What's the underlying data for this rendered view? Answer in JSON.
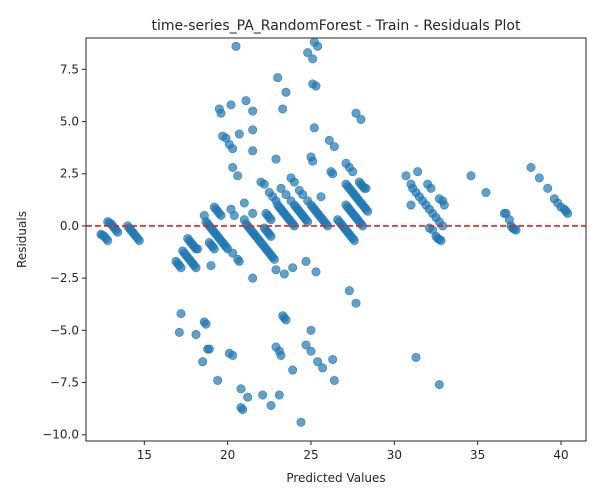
{
  "chart_data": {
    "type": "scatter",
    "title": "time-series_PA_RandomForest - Train - Residuals Plot",
    "xlabel": "Predicted Values",
    "ylabel": "Residuals",
    "xlim": [
      11.5,
      41.5
    ],
    "ylim": [
      -10.3,
      9.0
    ],
    "xticks": [
      15,
      20,
      25,
      30,
      35,
      40
    ],
    "yticks": [
      -10.0,
      -7.5,
      -5.0,
      -2.5,
      0.0,
      2.5,
      5.0,
      7.5
    ],
    "ytick_labels": [
      "−10.0",
      "−7.5",
      "−5.0",
      "−2.5",
      "0.0",
      "2.5",
      "5.0",
      "7.5"
    ],
    "grid": false,
    "reference_line": {
      "y": 0,
      "color": "#d62728",
      "style": "dashed"
    },
    "colors": {
      "points": "#1f77b4",
      "point_opacity": 0.7
    },
    "series": [
      {
        "points": [
          [
            12.4,
            -0.4
          ],
          [
            12.5,
            -0.45
          ],
          [
            12.6,
            -0.5
          ],
          [
            12.7,
            -0.6
          ],
          [
            12.8,
            -0.7
          ],
          [
            12.8,
            0.2
          ],
          [
            12.9,
            0.15
          ],
          [
            13.0,
            0.1
          ],
          [
            13.1,
            0.0
          ],
          [
            13.2,
            -0.1
          ],
          [
            13.3,
            -0.2
          ],
          [
            13.4,
            -0.3
          ],
          [
            14.0,
            0.0
          ],
          [
            14.1,
            -0.1
          ],
          [
            14.2,
            -0.2
          ],
          [
            14.3,
            -0.3
          ],
          [
            14.4,
            -0.4
          ],
          [
            14.5,
            -0.5
          ],
          [
            14.6,
            -0.6
          ],
          [
            14.7,
            -0.7
          ],
          [
            16.9,
            -1.7
          ],
          [
            17.0,
            -1.8
          ],
          [
            17.1,
            -1.9
          ],
          [
            17.2,
            -2.0
          ],
          [
            17.3,
            -1.2
          ],
          [
            17.4,
            -1.3
          ],
          [
            17.5,
            -1.4
          ],
          [
            17.6,
            -1.5
          ],
          [
            17.7,
            -1.6
          ],
          [
            17.8,
            -1.7
          ],
          [
            17.9,
            -1.8
          ],
          [
            18.0,
            -1.9
          ],
          [
            18.1,
            -2.0
          ],
          [
            17.6,
            -0.6
          ],
          [
            17.7,
            -0.7
          ],
          [
            17.8,
            -0.8
          ],
          [
            17.9,
            -0.9
          ],
          [
            18.0,
            -1.0
          ],
          [
            18.1,
            -1.1
          ],
          [
            18.2,
            -1.1
          ],
          [
            18.6,
            0.5
          ],
          [
            18.7,
            0.2
          ],
          [
            18.8,
            0.1
          ],
          [
            18.9,
            0.0
          ],
          [
            19.0,
            -0.1
          ],
          [
            19.1,
            -0.2
          ],
          [
            19.2,
            -0.3
          ],
          [
            19.3,
            -0.4
          ],
          [
            19.4,
            -0.5
          ],
          [
            19.5,
            -0.6
          ],
          [
            19.6,
            -0.7
          ],
          [
            19.7,
            -0.8
          ],
          [
            19.8,
            -0.9
          ],
          [
            19.9,
            -1.0
          ],
          [
            20.0,
            -1.1
          ],
          [
            18.9,
            -0.8
          ],
          [
            19.0,
            -0.9
          ],
          [
            19.1,
            -1.0
          ],
          [
            19.2,
            -1.1
          ],
          [
            19.2,
            0.9
          ],
          [
            19.3,
            0.8
          ],
          [
            19.4,
            0.7
          ],
          [
            19.5,
            0.6
          ],
          [
            19.6,
            0.5
          ],
          [
            19.0,
            -1.9
          ],
          [
            20.2,
            0.8
          ],
          [
            20.4,
            0.5
          ],
          [
            20.3,
            -1.3
          ],
          [
            20.6,
            -1.6
          ],
          [
            20.7,
            -1.7
          ],
          [
            21.0,
            0.3
          ],
          [
            21.1,
            0.1
          ],
          [
            21.2,
            0.0
          ],
          [
            21.3,
            -0.1
          ],
          [
            21.4,
            -0.2
          ],
          [
            21.5,
            -0.3
          ],
          [
            21.6,
            -0.4
          ],
          [
            21.7,
            -0.5
          ],
          [
            21.8,
            -0.6
          ],
          [
            21.9,
            -0.7
          ],
          [
            22.0,
            -0.8
          ],
          [
            22.1,
            -0.9
          ],
          [
            22.2,
            -1.0
          ],
          [
            22.3,
            -1.1
          ],
          [
            22.4,
            -1.2
          ],
          [
            22.5,
            -1.3
          ],
          [
            22.6,
            -1.4
          ],
          [
            22.7,
            -1.5
          ],
          [
            22.8,
            -1.6
          ],
          [
            22.3,
            0.6
          ],
          [
            22.4,
            0.5
          ],
          [
            22.5,
            0.4
          ],
          [
            22.6,
            0.3
          ],
          [
            22.2,
            -0.1
          ],
          [
            22.3,
            -0.2
          ],
          [
            22.4,
            -0.3
          ],
          [
            22.5,
            -0.4
          ],
          [
            22.6,
            -0.5
          ],
          [
            21.0,
            1.1
          ],
          [
            21.5,
            0.6
          ],
          [
            21.5,
            -2.5
          ],
          [
            23.0,
            1.0
          ],
          [
            23.1,
            0.9
          ],
          [
            23.2,
            0.8
          ],
          [
            23.3,
            0.7
          ],
          [
            23.4,
            0.6
          ],
          [
            23.5,
            0.5
          ],
          [
            23.6,
            0.4
          ],
          [
            23.7,
            0.3
          ],
          [
            23.8,
            0.2
          ],
          [
            23.9,
            0.1
          ],
          [
            24.0,
            0.0
          ],
          [
            23.2,
            1.8
          ],
          [
            23.5,
            1.5
          ],
          [
            23.8,
            1.2
          ],
          [
            24.0,
            1.0
          ],
          [
            24.1,
            0.9
          ],
          [
            24.2,
            0.8
          ],
          [
            24.3,
            0.7
          ],
          [
            24.4,
            0.6
          ],
          [
            24.5,
            0.5
          ],
          [
            24.6,
            0.4
          ],
          [
            24.7,
            0.3
          ],
          [
            24.8,
            0.2
          ],
          [
            24.8,
            1.2
          ],
          [
            25.0,
            1.0
          ],
          [
            25.1,
            0.9
          ],
          [
            25.2,
            0.8
          ],
          [
            25.3,
            0.7
          ],
          [
            25.4,
            0.6
          ],
          [
            25.5,
            0.5
          ],
          [
            25.6,
            0.4
          ],
          [
            25.7,
            0.3
          ],
          [
            25.8,
            0.2
          ],
          [
            25.9,
            0.1
          ],
          [
            26.0,
            0.0
          ],
          [
            25.6,
            1.4
          ],
          [
            26.2,
            2.6
          ],
          [
            26.6,
            0.3
          ],
          [
            26.7,
            0.2
          ],
          [
            26.8,
            0.1
          ],
          [
            26.9,
            0.0
          ],
          [
            27.0,
            -0.1
          ],
          [
            27.1,
            -0.2
          ],
          [
            27.2,
            -0.3
          ],
          [
            27.3,
            -0.4
          ],
          [
            27.4,
            -0.5
          ],
          [
            27.5,
            -0.6
          ],
          [
            27.6,
            -0.7
          ],
          [
            27.1,
            1.0
          ],
          [
            27.2,
            0.9
          ],
          [
            27.3,
            0.8
          ],
          [
            27.4,
            0.7
          ],
          [
            27.5,
            0.6
          ],
          [
            27.6,
            0.5
          ],
          [
            27.7,
            0.4
          ],
          [
            27.8,
            0.3
          ],
          [
            27.9,
            0.2
          ],
          [
            28.0,
            0.1
          ],
          [
            28.1,
            0.0
          ],
          [
            27.1,
            2.0
          ],
          [
            27.2,
            1.9
          ],
          [
            27.3,
            1.8
          ],
          [
            27.4,
            1.7
          ],
          [
            27.5,
            1.6
          ],
          [
            27.6,
            1.5
          ],
          [
            27.7,
            1.4
          ],
          [
            27.8,
            1.3
          ],
          [
            27.9,
            1.2
          ],
          [
            28.0,
            1.1
          ],
          [
            28.1,
            1.0
          ],
          [
            28.2,
            0.9
          ],
          [
            28.3,
            0.8
          ],
          [
            28.4,
            0.7
          ],
          [
            27.9,
            2.1
          ],
          [
            28.0,
            2.0
          ],
          [
            28.1,
            1.9
          ],
          [
            28.2,
            1.8
          ],
          [
            28.3,
            1.8
          ],
          [
            27.1,
            3.0
          ],
          [
            27.3,
            2.8
          ],
          [
            27.5,
            2.6
          ],
          [
            22.0,
            2.1
          ],
          [
            22.2,
            2.0
          ],
          [
            22.5,
            1.6
          ],
          [
            22.7,
            1.4
          ],
          [
            22.9,
            1.2
          ],
          [
            23.8,
            2.3
          ],
          [
            24.0,
            2.1
          ],
          [
            24.3,
            1.7
          ],
          [
            24.5,
            1.5
          ],
          [
            25.0,
            3.3
          ],
          [
            25.1,
            3.1
          ],
          [
            26.3,
            2.5
          ],
          [
            20.3,
            2.8
          ],
          [
            20.6,
            2.4
          ],
          [
            21.5,
            3.6
          ],
          [
            22.9,
            3.2
          ],
          [
            19.7,
            4.3
          ],
          [
            19.9,
            4.2
          ],
          [
            20.1,
            3.9
          ],
          [
            20.3,
            3.7
          ],
          [
            20.7,
            4.4
          ],
          [
            21.5,
            4.6
          ],
          [
            19.5,
            5.6
          ],
          [
            19.6,
            5.4
          ],
          [
            20.2,
            5.8
          ],
          [
            21.1,
            6.0
          ],
          [
            21.5,
            5.5
          ],
          [
            23.3,
            5.6
          ],
          [
            25.2,
            4.7
          ],
          [
            26.1,
            4.1
          ],
          [
            26.4,
            3.8
          ],
          [
            27.7,
            5.4
          ],
          [
            28.0,
            5.1
          ],
          [
            23.0,
            7.1
          ],
          [
            23.5,
            6.4
          ],
          [
            25.1,
            6.8
          ],
          [
            25.3,
            6.7
          ],
          [
            20.5,
            8.6
          ],
          [
            24.8,
            8.3
          ],
          [
            25.1,
            8.0
          ],
          [
            25.2,
            8.8
          ],
          [
            25.4,
            8.6
          ],
          [
            30.7,
            2.4
          ],
          [
            31.0,
            2.0
          ],
          [
            31.1,
            1.8
          ],
          [
            31.3,
            1.6
          ],
          [
            31.5,
            1.4
          ],
          [
            31.7,
            1.2
          ],
          [
            31.9,
            1.0
          ],
          [
            32.1,
            0.8
          ],
          [
            32.3,
            0.6
          ],
          [
            32.5,
            0.4
          ],
          [
            32.7,
            0.2
          ],
          [
            32.9,
            0.0
          ],
          [
            31.0,
            1.0
          ],
          [
            31.4,
            2.6
          ],
          [
            32.0,
            2.0
          ],
          [
            32.2,
            1.8
          ],
          [
            32.7,
            1.3
          ],
          [
            32.9,
            1.2
          ],
          [
            33.0,
            1.0
          ],
          [
            32.1,
            -0.1
          ],
          [
            32.3,
            -0.2
          ],
          [
            32.5,
            -0.5
          ],
          [
            32.6,
            -0.6
          ],
          [
            32.7,
            -0.65
          ],
          [
            32.8,
            -0.7
          ],
          [
            34.6,
            2.4
          ],
          [
            35.5,
            1.6
          ],
          [
            36.6,
            0.6
          ],
          [
            36.7,
            0.6
          ],
          [
            36.9,
            0.3
          ],
          [
            37.0,
            0.0
          ],
          [
            37.1,
            -0.1
          ],
          [
            37.2,
            -0.15
          ],
          [
            37.3,
            -0.2
          ],
          [
            38.2,
            2.8
          ],
          [
            38.7,
            2.3
          ],
          [
            39.2,
            1.8
          ],
          [
            39.6,
            1.3
          ],
          [
            39.8,
            1.1
          ],
          [
            40.0,
            0.9
          ],
          [
            40.2,
            0.8
          ],
          [
            40.3,
            0.7
          ],
          [
            40.4,
            0.6
          ],
          [
            17.1,
            -5.1
          ],
          [
            17.2,
            -4.2
          ],
          [
            18.1,
            -5.2
          ],
          [
            18.6,
            -4.6
          ],
          [
            18.7,
            -4.7
          ],
          [
            18.8,
            -5.9
          ],
          [
            18.9,
            -5.9
          ],
          [
            18.5,
            -6.5
          ],
          [
            19.4,
            -7.4
          ],
          [
            20.1,
            -6.1
          ],
          [
            20.3,
            -6.2
          ],
          [
            20.8,
            -7.8
          ],
          [
            20.8,
            -8.7
          ],
          [
            20.9,
            -8.8
          ],
          [
            21.2,
            -8.2
          ],
          [
            22.1,
            -8.1
          ],
          [
            22.6,
            -8.6
          ],
          [
            23.1,
            -8.1
          ],
          [
            23.3,
            -4.3
          ],
          [
            23.4,
            -4.4
          ],
          [
            23.5,
            -4.5
          ],
          [
            22.9,
            -5.8
          ],
          [
            23.1,
            -6.0
          ],
          [
            23.2,
            -6.2
          ],
          [
            23.9,
            -6.9
          ],
          [
            24.4,
            -9.4
          ],
          [
            24.7,
            -5.7
          ],
          [
            25.0,
            -6.0
          ],
          [
            25.0,
            -5.0
          ],
          [
            25.4,
            -6.5
          ],
          [
            25.7,
            -6.8
          ],
          [
            26.3,
            -6.4
          ],
          [
            26.4,
            -7.4
          ],
          [
            22.9,
            -2.1
          ],
          [
            23.4,
            -2.3
          ],
          [
            23.9,
            -2.0
          ],
          [
            24.7,
            -1.7
          ],
          [
            25.3,
            -2.2
          ],
          [
            27.3,
            -3.1
          ],
          [
            27.7,
            -3.7
          ],
          [
            31.3,
            -6.3
          ],
          [
            32.7,
            -7.6
          ]
        ]
      }
    ]
  }
}
